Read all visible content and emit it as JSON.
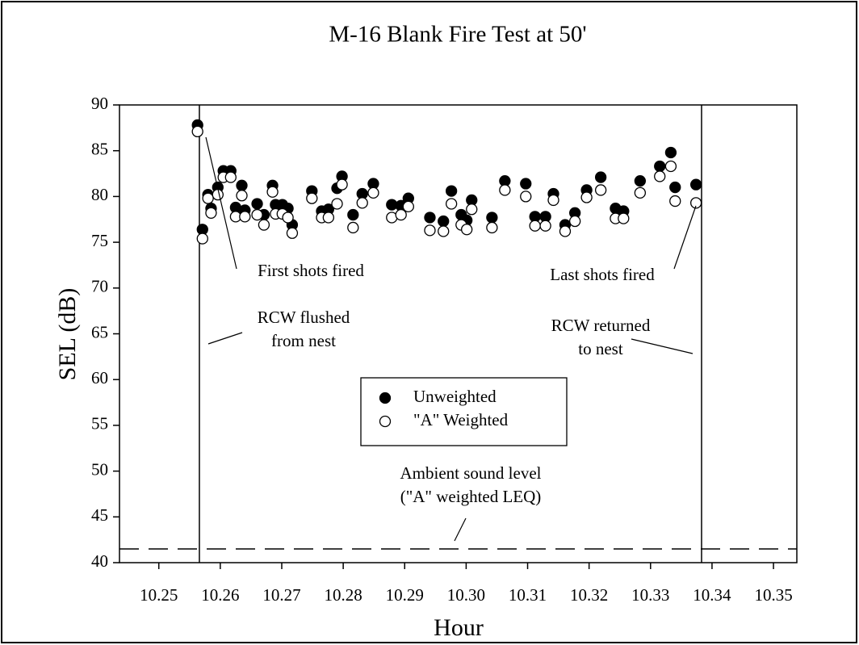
{
  "chart_data": {
    "type": "scatter",
    "title": "M-16 Blank Fire Test at 50'",
    "xlabel": "Hour",
    "ylabel": "SEL (dB)",
    "xlim": [
      10.2436,
      10.3538
    ],
    "ylim": [
      40,
      90
    ],
    "xticks": [
      10.25,
      10.26,
      10.27,
      10.28,
      10.29,
      {
        "value": 10.3,
        "label": "10.30"
      },
      10.31,
      10.32,
      10.33,
      10.34,
      10.35
    ],
    "yticks": [
      40,
      45,
      50,
      55,
      60,
      65,
      70,
      75,
      80,
      85,
      90
    ],
    "x": [
      10.2563,
      10.2571,
      10.258,
      10.2585,
      10.2596,
      10.2605,
      10.2617,
      10.2625,
      10.2635,
      10.264,
      10.266,
      10.2671,
      10.2685,
      10.269,
      10.2701,
      10.271,
      10.2717,
      10.2749,
      10.2765,
      10.2776,
      10.279,
      10.2798,
      10.2816,
      10.2831,
      10.2849,
      10.2879,
      10.2894,
      10.2906,
      10.2941,
      10.2963,
      10.2976,
      10.2992,
      10.3001,
      10.3009,
      10.3042,
      10.3063,
      10.3097,
      10.3112,
      10.3129,
      10.3142,
      10.3161,
      10.3177,
      10.3196,
      10.3219,
      10.3243,
      10.3256,
      10.3283,
      10.3315,
      10.3333,
      10.334,
      10.3374
    ],
    "series": [
      {
        "name": "Unweighted",
        "color": "#000000",
        "values": [
          87.8,
          76.4,
          80.2,
          78.7,
          81.0,
          82.8,
          82.8,
          78.8,
          81.2,
          78.5,
          79.2,
          78.0,
          81.2,
          79.1,
          79.1,
          78.7,
          76.9,
          80.6,
          78.4,
          78.6,
          80.9,
          82.2,
          78.0,
          80.3,
          81.4,
          79.1,
          79.0,
          79.8,
          77.7,
          77.3,
          80.6,
          78.0,
          77.4,
          79.6,
          77.7,
          81.7,
          81.4,
          77.8,
          77.8,
          80.3,
          76.9,
          78.2,
          80.7,
          82.1,
          78.7,
          78.4,
          81.7,
          83.3,
          84.8,
          81.0,
          81.3
        ]
      },
      {
        "name": "\"A\" Weighted",
        "color": "#ffffff",
        "values": [
          87.1,
          75.4,
          79.8,
          78.2,
          80.2,
          82.1,
          82.1,
          77.8,
          80.1,
          77.8,
          78.0,
          76.9,
          80.5,
          78.1,
          78.1,
          77.7,
          76.0,
          79.8,
          77.7,
          77.7,
          79.2,
          81.3,
          76.6,
          79.3,
          80.4,
          77.7,
          78.0,
          78.9,
          76.3,
          76.2,
          79.2,
          76.9,
          76.4,
          78.6,
          76.6,
          80.7,
          80.0,
          76.8,
          76.8,
          79.6,
          76.2,
          77.3,
          79.9,
          80.7,
          77.6,
          77.6,
          80.4,
          82.2,
          83.3,
          79.5,
          79.3
        ]
      }
    ],
    "vlines": [
      10.2566,
      10.3383
    ],
    "hline": 41.5,
    "annotations": [
      {
        "text": [
          "First shots fired"
        ]
      },
      {
        "text": [
          "Last shots fired"
        ]
      },
      {
        "text": [
          "RCW flushed",
          "from nest"
        ]
      },
      {
        "text": [
          "RCW returned",
          "to nest"
        ]
      },
      {
        "text": [
          "Ambient sound level",
          "(\"A\" weighted LEQ)"
        ]
      }
    ],
    "legend": "center"
  }
}
